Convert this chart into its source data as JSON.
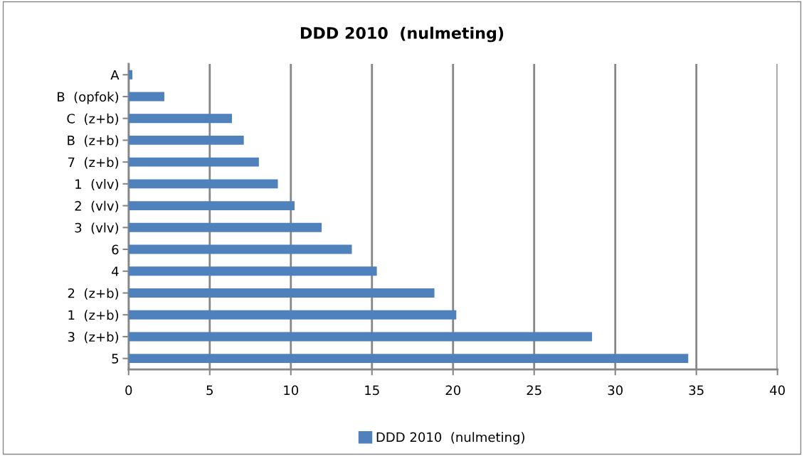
{
  "chart_data": {
    "type": "bar",
    "orientation": "horizontal",
    "title": "DDD 2010  (nulmeting)",
    "categories": [
      "A",
      "B  (opfok)",
      "C  (z+b)",
      "B  (z+b)",
      "7  (z+b)",
      "1  (vlv)",
      "2  (vlv)",
      "3  (vlv)",
      "6",
      "4",
      "2  (z+b)",
      "1  (z+b)",
      "3  (z+b)",
      "5"
    ],
    "series": [
      {
        "name": "DDD 2010  (nulmeting)",
        "color": "#4f81bd",
        "values": [
          0.23,
          2.2,
          6.37,
          7.1,
          8.03,
          9.2,
          10.23,
          11.9,
          13.76,
          15.3,
          18.85,
          20.2,
          28.57,
          34.5
        ]
      }
    ],
    "xlim": [
      0,
      40
    ],
    "xticks": [
      0,
      5,
      10,
      15,
      20,
      25,
      30,
      35,
      40
    ],
    "grid": "x",
    "legend": "bottom"
  }
}
